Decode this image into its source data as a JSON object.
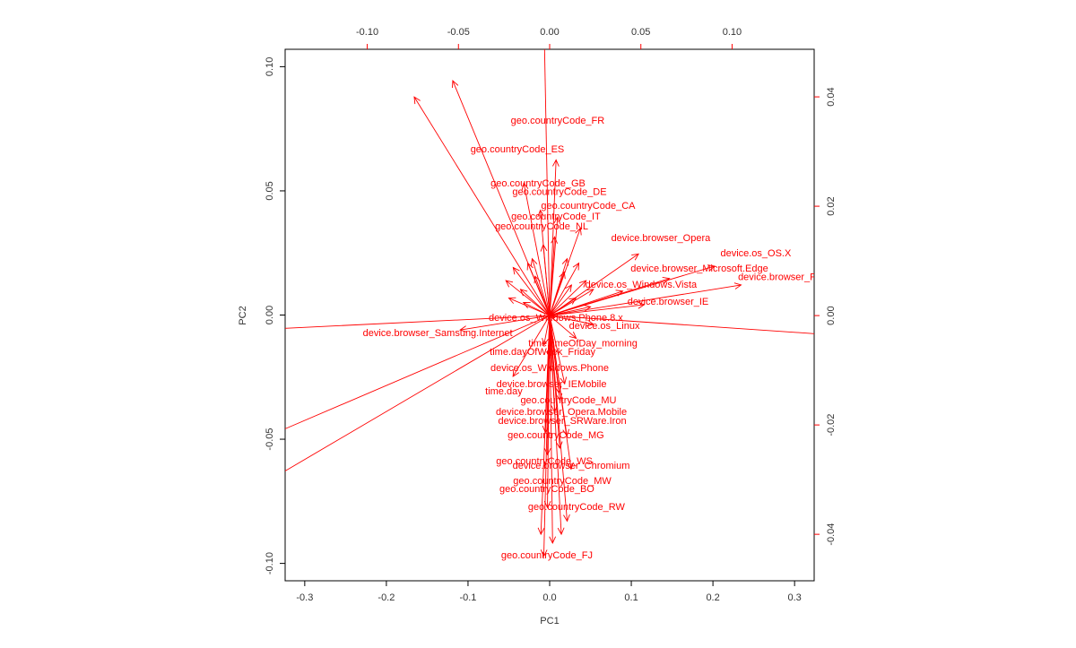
{
  "chart_data": {
    "type": "biplot",
    "xlabel": "PC1",
    "ylabel": "PC2",
    "color": "#ff0000",
    "xlim": [
      -0.324,
      0.324
    ],
    "xticks": [
      -0.3,
      -0.2,
      -0.1,
      {
        "value": 0,
        "label": "0.0"
      },
      0.1,
      0.2,
      0.3
    ],
    "ylim": [
      -0.107,
      0.107
    ],
    "yticks": [
      {
        "value": -0.1,
        "label": "-0.10"
      },
      -0.05,
      {
        "value": 0,
        "label": "0.00"
      },
      0.05,
      {
        "value": 0.1,
        "label": "0.10"
      }
    ],
    "x2lim": [
      -0.145,
      0.145
    ],
    "x2ticks": [
      {
        "value": -0.1,
        "label": "-0.10"
      },
      -0.05,
      {
        "value": 0,
        "label": "0.00"
      },
      0.05,
      {
        "value": 0.1,
        "label": "0.10"
      }
    ],
    "y2lim": [
      -0.0485,
      0.0487
    ],
    "y2ticks": [
      -0.04,
      -0.02,
      {
        "value": 0,
        "label": "0.00"
      },
      0.02,
      0.04
    ],
    "loadings": {
      "labels": [
        "geo.countryCode_FR",
        "geo.countryCode_ES",
        "geo.countryCode_GB",
        "geo.countryCode_DE",
        "geo.countryCode_CA",
        "geo.countryCode_IT",
        "geo.countryCode_NL",
        "device.browser_Opera",
        "device.os_OS.X",
        "device.browser_Microsoft.Edge",
        "device.browser_Firefox",
        "device.os_Windows.Vista",
        "device.browser_IE",
        "device.os_Windows.Phone.8.x",
        "device.os_Linux",
        "device.browser_Samsung.Internet",
        "time.timeOfDay_morning",
        "time.dayOfWeek_Friday",
        "device.os_Windows.Phone",
        "device.browser_IEMobile",
        "time.day",
        "geo.countryCode_MU",
        "device.browser_Opera.Mobile",
        "device.browser_SRWare.Iron",
        "geo.countryCode_MG",
        "geo.countryCode_WS",
        "device.browser_Chromium",
        "geo.countryCode_MW",
        "geo.countryCode_BO",
        "geo.countryCode_RW",
        "geo.countryCode_FJ",
        null,
        null,
        null,
        null,
        null,
        null,
        null,
        null,
        null,
        null,
        null,
        null,
        null,
        null,
        null,
        null,
        null,
        null,
        null,
        null,
        null,
        null,
        null,
        null,
        null,
        null,
        null,
        null
      ],
      "x": [
        0.0044,
        -0.0177,
        -0.0064,
        0.0054,
        0.0211,
        0.0034,
        -0.0044,
        0.0609,
        0.113,
        0.0821,
        0.1312,
        0.0501,
        0.0649,
        0.0034,
        0.03,
        -0.0614,
        0.0182,
        -0.0039,
        0,
        0.001,
        -0.0251,
        0.0103,
        0.0064,
        0.0069,
        0.0034,
        -0.0029,
        0.0118,
        0.0069,
        -0.0015,
        0.0147,
        -0.0015,
        -0.25,
        -0.25,
        -0.25,
        0.25,
        -0.004,
        -0.0928,
        -0.0664,
        -0.006,
        0.002,
        0.008,
        0.012,
        -0.004,
        -0.03,
        -0.025,
        -0.02,
        -0.015,
        -0.01,
        0.01,
        0.015,
        0.02,
        0.025,
        0.03,
        -0.028,
        -0.018,
        0.018,
        0.028,
        -0.012,
        0.012
      ],
      "y": [
        0.0356,
        0.0303,
        0.0241,
        0.0225,
        0.02,
        0.018,
        0.0162,
        0.0141,
        0.0113,
        0.0085,
        0.007,
        0.0056,
        0.0025,
        -0.0005,
        -0.002,
        -0.0033,
        -0.0052,
        -0.0067,
        -0.0097,
        -0.0126,
        -0.0139,
        -0.0156,
        -0.0177,
        -0.0193,
        -0.022,
        -0.0267,
        -0.0275,
        -0.0303,
        -0.0318,
        -0.0351,
        -0.0439,
        -0.004,
        -0.0357,
        -0.049,
        -0.0057,
        0.07,
        0.05,
        0.0537,
        -0.05,
        -0.052,
        -0.05,
        -0.047,
        -0.055,
        0.008,
        0.011,
        0.006,
        0.012,
        0.009,
        0.01,
        0.007,
        0.012,
        0.008,
        0.006,
        0.004,
        0.003,
        0.004,
        0.002,
        0.013,
        0.013
      ]
    }
  }
}
